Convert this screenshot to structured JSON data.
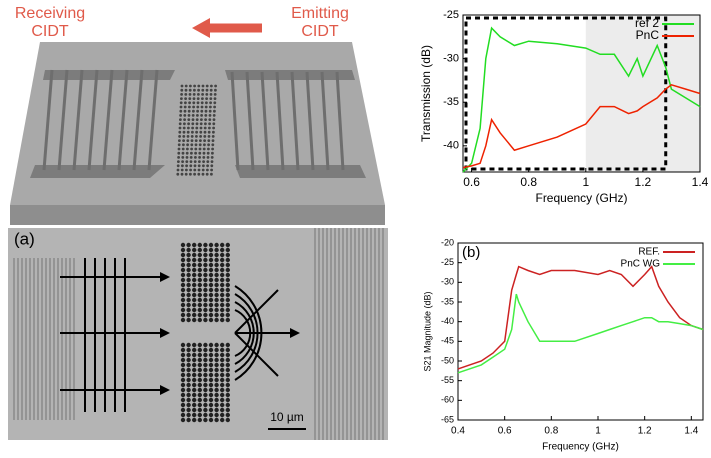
{
  "figure": {
    "receiving": "Receiving",
    "receiving_sub": "CIDT",
    "emitting": "Emitting",
    "emitting_sub": "CIDT",
    "panel_a": "(a)",
    "scale_bar": "10 µm"
  },
  "chart_data": [
    {
      "type": "line",
      "x_label": "Frequency (GHz)",
      "y_label": "Transmission (dB)",
      "x": [
        0.57,
        0.6,
        0.63,
        0.65,
        0.67,
        0.7,
        0.75,
        0.8,
        0.9,
        1.0,
        1.05,
        1.1,
        1.15,
        1.18,
        1.2,
        1.25,
        1.28,
        1.3,
        1.35,
        1.4
      ],
      "series": [
        {
          "name": "ref 2",
          "color": "#22dd22",
          "values": [
            -43,
            -42,
            -38,
            -30,
            -26.5,
            -27.5,
            -28.5,
            -28,
            -28.3,
            -28.8,
            -29.5,
            -29.5,
            -32,
            -30,
            -32,
            -28.5,
            -31,
            -33.5,
            -34.5,
            -35.5
          ]
        },
        {
          "name": "PnC",
          "color": "#ee2200",
          "values": [
            -42.5,
            -42.3,
            -42,
            -40,
            -37,
            -38.5,
            -40.5,
            -40,
            -39,
            -37.5,
            -35.5,
            -35.5,
            -36.3,
            -36,
            -35.5,
            -34.5,
            -33.5,
            -33,
            -33.5,
            -34
          ]
        }
      ],
      "xlim": [
        0.57,
        1.4
      ],
      "ylim": [
        -43,
        -25
      ],
      "xticks": [
        0.6,
        0.8,
        1,
        1.2,
        1.4
      ],
      "yticks": [
        -40,
        -35,
        -30,
        -25
      ],
      "legend": "top-right"
    },
    {
      "type": "line",
      "x_label": "Frequency (GHz)",
      "y_label": "S21 Magnitude (dB)",
      "annotation": "(b)",
      "x": [
        0.4,
        0.5,
        0.55,
        0.6,
        0.63,
        0.65,
        0.66,
        0.7,
        0.75,
        0.8,
        0.9,
        1.0,
        1.05,
        1.1,
        1.15,
        1.2,
        1.23,
        1.26,
        1.3,
        1.35,
        1.4,
        1.45
      ],
      "series": [
        {
          "name": "REF.",
          "color": "#cc2222",
          "values": [
            -52,
            -50,
            -48,
            -45,
            -32,
            -28,
            -26,
            -27,
            -28,
            -27,
            -27,
            -28,
            -27,
            -28,
            -31,
            -28,
            -26,
            -31,
            -35,
            -39,
            -41,
            -42
          ]
        },
        {
          "name": "PnC WG",
          "color": "#44ee44",
          "values": [
            -53,
            -51,
            -49,
            -47,
            -42,
            -33,
            -35,
            -40,
            -45,
            -45,
            -45,
            -43,
            -42,
            -41,
            -40,
            -39,
            -39,
            -40,
            -40,
            -40.5,
            -41,
            -42
          ]
        }
      ],
      "xlim": [
        0.4,
        1.45
      ],
      "ylim": [
        -65,
        -20
      ],
      "xticks": [
        0.4,
        0.6,
        0.8,
        1,
        1.2,
        1.4
      ],
      "yticks": [
        -65,
        -60,
        -55,
        -50,
        -45,
        -40,
        -35,
        -30,
        -25,
        -20
      ],
      "legend": "top-right"
    }
  ]
}
